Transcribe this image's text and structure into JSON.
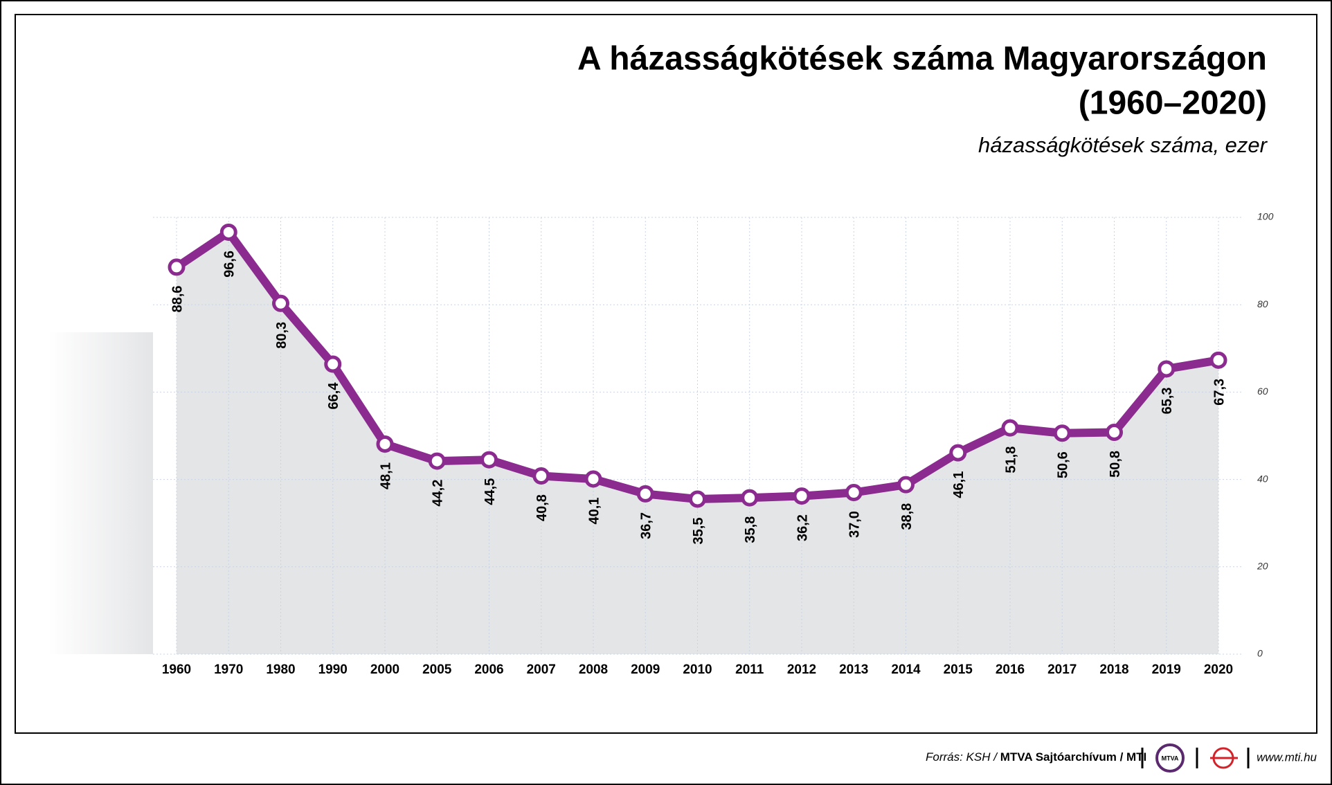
{
  "chart_data": {
    "type": "line",
    "title": "A házasságkötések száma Magyarországon",
    "title_line2": "(1960–2020)",
    "subtitle": "házasságkötések száma, ezer",
    "categories": [
      "1960",
      "1970",
      "1980",
      "1990",
      "2000",
      "2005",
      "2006",
      "2007",
      "2008",
      "2009",
      "2010",
      "2011",
      "2012",
      "2013",
      "2014",
      "2015",
      "2016",
      "2017",
      "2018",
      "2019",
      "2020"
    ],
    "series": [
      {
        "name": "házasságkötések száma",
        "color": "#8b2a8f",
        "values": [
          88.6,
          96.6,
          80.3,
          66.4,
          48.1,
          44.2,
          44.5,
          40.8,
          40.1,
          36.7,
          35.5,
          35.8,
          36.2,
          37.0,
          38.8,
          46.1,
          51.8,
          50.6,
          50.8,
          65.3,
          67.3
        ],
        "value_labels": [
          "88,6",
          "96,6",
          "80,3",
          "66,4",
          "48,1",
          "44,2",
          "44,5",
          "40,8",
          "40,1",
          "36,7",
          "35,5",
          "35,8",
          "36,2",
          "37,0",
          "38,8",
          "46,1",
          "51,8",
          "50,6",
          "50,8",
          "65,3",
          "67,3"
        ]
      }
    ],
    "area_color": "#e4e5e7",
    "ylim": [
      0,
      100
    ],
    "yticks": [
      0,
      20,
      40,
      60,
      80,
      100
    ],
    "grid": true
  },
  "footer": {
    "source_prefix": "Forrás: KSH /",
    "source_bold": "MTVA Sajtóarchívum / MTI",
    "logo": "MTVA",
    "url": "www.mti.hu"
  }
}
